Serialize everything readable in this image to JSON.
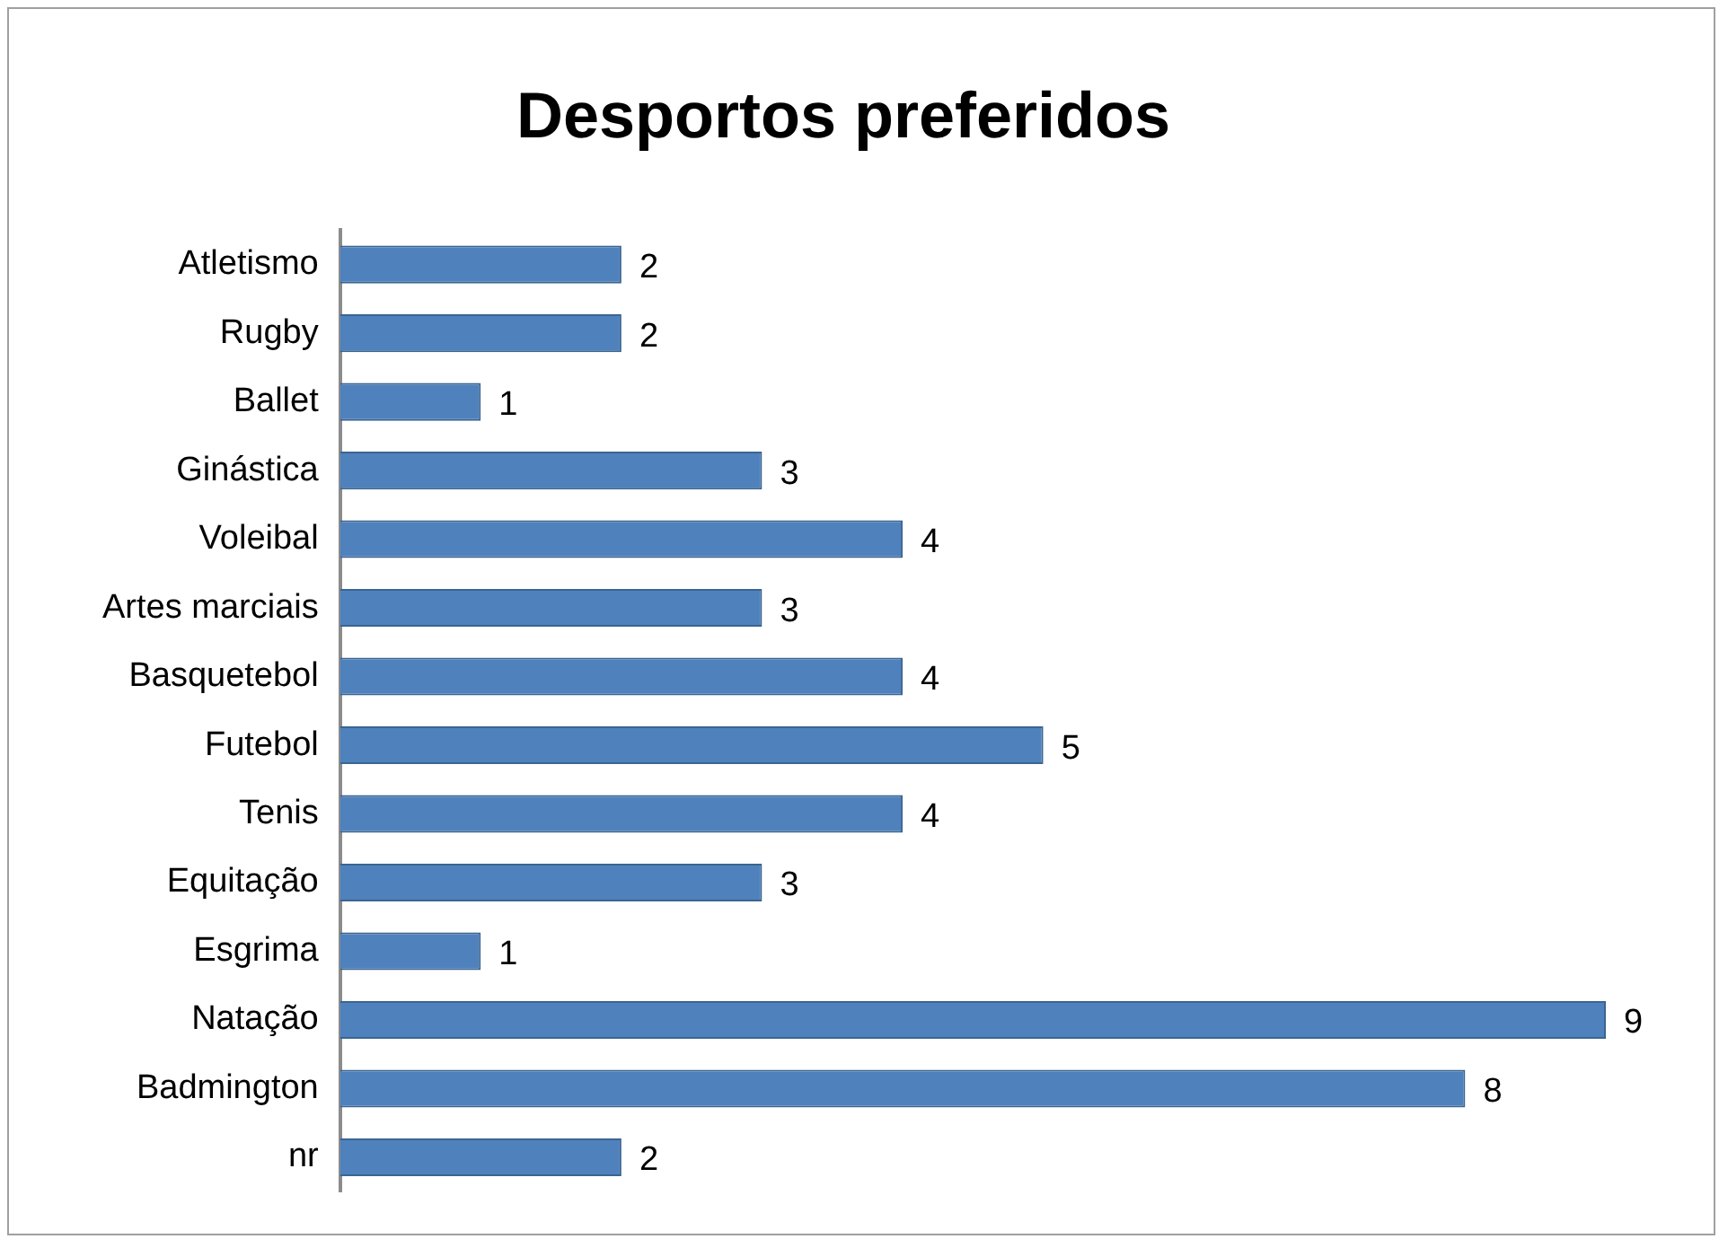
{
  "chart_data": {
    "type": "bar",
    "orientation": "horizontal",
    "title": "Desportos preferidos",
    "categories": [
      "Atletismo",
      "Rugby",
      "Ballet",
      "Ginástica",
      "Voleibal",
      "Artes marciais",
      "Basquetebol",
      "Futebol",
      "Tenis",
      "Equitação",
      "Esgrima",
      "Natação",
      "Badmington",
      "nr"
    ],
    "values": [
      2,
      2,
      1,
      3,
      4,
      3,
      4,
      5,
      4,
      3,
      1,
      9,
      8,
      2
    ],
    "color": "#4f81bd",
    "data_labels": true,
    "tick_labels": "y"
  }
}
